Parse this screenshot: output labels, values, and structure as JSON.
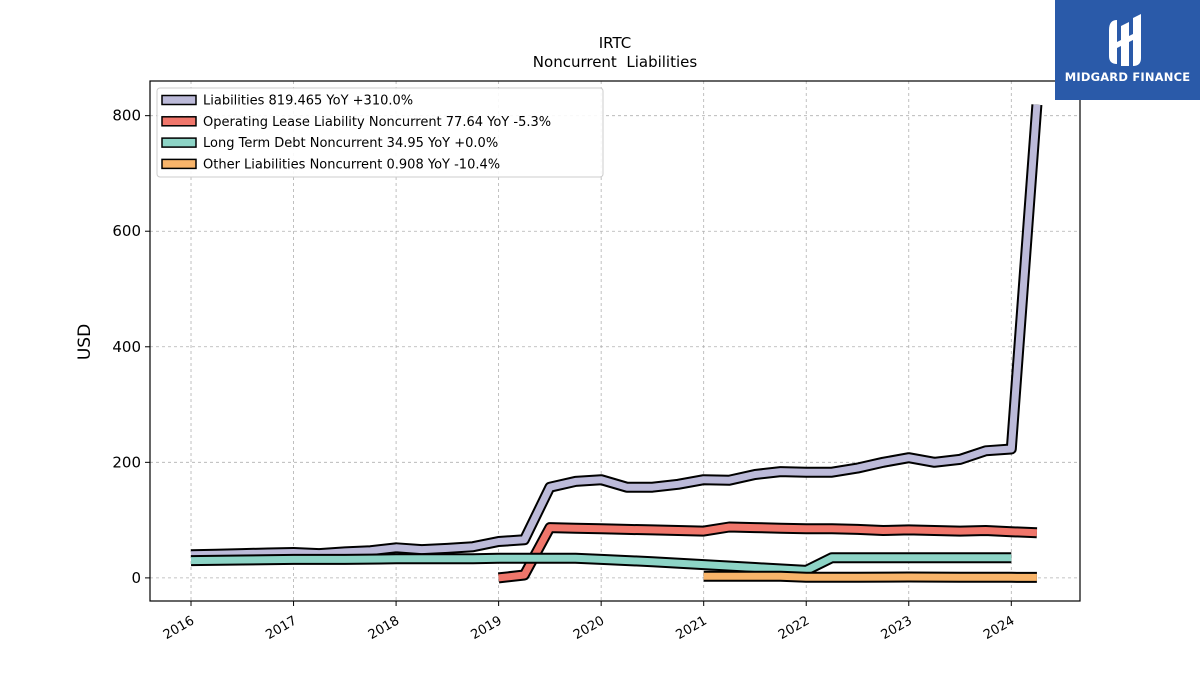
{
  "brand": {
    "name": "MIDGARD FINANCE",
    "bg_color": "#2a5aa9"
  },
  "chart_data": {
    "type": "line",
    "title": "IRTC",
    "subtitle": "Noncurrent  Liabilities",
    "xlabel": "",
    "ylabel": "USD",
    "xlim": [
      2015.6,
      2024.67
    ],
    "ylim": [
      -40,
      860
    ],
    "x_ticks": [
      "2016",
      "2017",
      "2018",
      "2019",
      "2020",
      "2021",
      "2022",
      "2023",
      "2024"
    ],
    "y_ticks": [
      "0",
      "200",
      "400",
      "600",
      "800"
    ],
    "grid": true,
    "legend_position": "top-left",
    "series": [
      {
        "name": "Liabilities  819.465 YoY +310.0%",
        "color": "#bcbad9",
        "points": [
          [
            2016.0,
            40
          ],
          [
            2016.25,
            41
          ],
          [
            2016.5,
            42
          ],
          [
            2016.75,
            43
          ],
          [
            2017.0,
            44
          ],
          [
            2017.25,
            42
          ],
          [
            2017.5,
            45
          ],
          [
            2017.75,
            47
          ],
          [
            2018.0,
            52
          ],
          [
            2018.25,
            49
          ],
          [
            2018.5,
            51
          ],
          [
            2018.75,
            54
          ],
          [
            2019.0,
            63
          ],
          [
            2019.25,
            66
          ],
          [
            2019.5,
            157
          ],
          [
            2019.75,
            167
          ],
          [
            2020.0,
            170
          ],
          [
            2020.25,
            157
          ],
          [
            2020.5,
            157
          ],
          [
            2020.75,
            162
          ],
          [
            2021.0,
            170
          ],
          [
            2021.25,
            169
          ],
          [
            2021.5,
            179
          ],
          [
            2021.75,
            184
          ],
          [
            2022.0,
            183
          ],
          [
            2022.25,
            183
          ],
          [
            2022.5,
            190
          ],
          [
            2022.75,
            200
          ],
          [
            2023.0,
            208
          ],
          [
            2023.25,
            200
          ],
          [
            2023.5,
            205
          ],
          [
            2023.75,
            220
          ],
          [
            2024.0,
            223
          ],
          [
            2024.25,
            819
          ]
        ]
      },
      {
        "name": "Operating Lease Liability Noncurrent  77.64 YoY -5.3%",
        "color": "#f0766b",
        "points": [
          [
            2019.0,
            0
          ],
          [
            2019.25,
            5
          ],
          [
            2019.5,
            87
          ],
          [
            2019.75,
            86
          ],
          [
            2020.0,
            85
          ],
          [
            2020.25,
            84
          ],
          [
            2020.5,
            83
          ],
          [
            2020.75,
            82
          ],
          [
            2021.0,
            81
          ],
          [
            2021.25,
            88
          ],
          [
            2021.5,
            87
          ],
          [
            2021.75,
            86
          ],
          [
            2022.0,
            85
          ],
          [
            2022.25,
            85
          ],
          [
            2022.5,
            84
          ],
          [
            2022.75,
            82
          ],
          [
            2023.0,
            83
          ],
          [
            2023.25,
            82
          ],
          [
            2023.5,
            81
          ],
          [
            2023.75,
            82
          ],
          [
            2024.0,
            80
          ],
          [
            2024.25,
            78
          ]
        ]
      },
      {
        "name": "Long Term Debt Noncurrent  34.95 YoY +0.0%",
        "color": "#8dd4c6",
        "points": [
          [
            2016.0,
            30
          ],
          [
            2016.5,
            31
          ],
          [
            2017.0,
            32
          ],
          [
            2017.5,
            32
          ],
          [
            2018.0,
            33
          ],
          [
            2018.5,
            33
          ],
          [
            2018.75,
            33
          ],
          [
            2019.0,
            34
          ],
          [
            2019.5,
            34
          ],
          [
            2019.75,
            34
          ],
          [
            2020.0,
            32
          ],
          [
            2020.5,
            28
          ],
          [
            2021.0,
            23
          ],
          [
            2021.5,
            18
          ],
          [
            2022.0,
            13
          ],
          [
            2022.25,
            35
          ],
          [
            2022.5,
            35
          ],
          [
            2023.0,
            35
          ],
          [
            2023.5,
            35
          ],
          [
            2024.0,
            35
          ]
        ]
      },
      {
        "name": "Other Liabilities Noncurrent  0.908 YoY -10.4%",
        "color": "#f8b46a",
        "points": [
          [
            2021.0,
            3
          ],
          [
            2021.5,
            3
          ],
          [
            2021.75,
            3
          ],
          [
            2022.0,
            1
          ],
          [
            2022.5,
            1
          ],
          [
            2023.0,
            1.5
          ],
          [
            2023.5,
            1
          ],
          [
            2024.0,
            1
          ],
          [
            2024.25,
            0.9
          ]
        ]
      }
    ]
  }
}
